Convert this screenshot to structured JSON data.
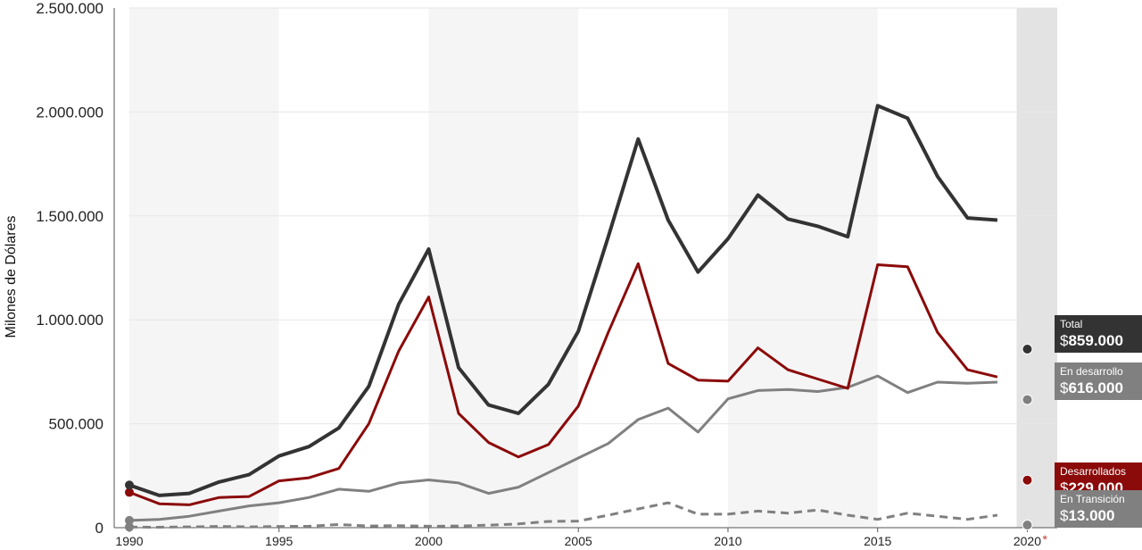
{
  "chart_data": {
    "type": "line",
    "ylabel": "Milones de Dólares",
    "ylim": [
      0,
      2500000
    ],
    "yticks": [
      0,
      500000,
      1000000,
      1500000,
      2000000,
      2500000
    ],
    "ytick_labels": [
      "0",
      "500.000",
      "1.000.000",
      "1.500.000",
      "2.000.000",
      "2.500.000"
    ],
    "xlim": [
      1990,
      2021
    ],
    "xticks": [
      1990,
      1995,
      2000,
      2005,
      2010,
      2015,
      2020
    ],
    "xtick_labels": [
      "1990",
      "1995",
      "2000",
      "2005",
      "2010",
      "2015",
      "2020"
    ],
    "x_note_marker": "*",
    "x": [
      1990,
      1991,
      1992,
      1993,
      1994,
      1995,
      1996,
      1997,
      1998,
      1999,
      2000,
      2001,
      2002,
      2003,
      2004,
      2005,
      2006,
      2007,
      2008,
      2009,
      2010,
      2011,
      2012,
      2013,
      2014,
      2015,
      2016,
      2017,
      2018,
      2019,
      2020
    ],
    "series": [
      {
        "name": "Total",
        "color": "#333333",
        "dashed": false,
        "values": [
          205000,
          155000,
          165000,
          220000,
          255000,
          345000,
          390000,
          480000,
          680000,
          1075000,
          1340000,
          770000,
          590000,
          550000,
          690000,
          945000,
          1400000,
          1870000,
          1480000,
          1230000,
          1390000,
          1600000,
          1485000,
          1450000,
          1400000,
          2030000,
          1970000,
          1690000,
          1490000,
          1480000,
          859000
        ]
      },
      {
        "name": "En desarrollo",
        "color": "#808080",
        "dashed": false,
        "values": [
          35000,
          40000,
          55000,
          80000,
          105000,
          120000,
          145000,
          185000,
          175000,
          215000,
          230000,
          215000,
          165000,
          195000,
          265000,
          335000,
          405000,
          520000,
          575000,
          460000,
          620000,
          660000,
          665000,
          655000,
          675000,
          730000,
          650000,
          700000,
          695000,
          700000,
          616000
        ]
      },
      {
        "name": "Desarrollados",
        "color": "#8b0a0a",
        "dashed": false,
        "values": [
          170000,
          115000,
          110000,
          145000,
          150000,
          225000,
          240000,
          285000,
          500000,
          850000,
          1110000,
          550000,
          410000,
          340000,
          400000,
          585000,
          940000,
          1270000,
          790000,
          710000,
          705000,
          865000,
          760000,
          715000,
          670000,
          1265000,
          1255000,
          940000,
          760000,
          725000,
          229000
        ]
      },
      {
        "name": "En Transición",
        "color": "#808080",
        "dashed": true,
        "values": [
          3000,
          2000,
          4000,
          6000,
          4000,
          6000,
          7000,
          15000,
          8000,
          10000,
          7000,
          8000,
          12000,
          18000,
          30000,
          32000,
          60000,
          90000,
          120000,
          65000,
          65000,
          80000,
          70000,
          85000,
          60000,
          40000,
          70000,
          55000,
          40000,
          60000,
          13000
        ]
      }
    ],
    "callouts": [
      {
        "label": "Total",
        "currency": "$",
        "value": "859.000",
        "bg": "#333333"
      },
      {
        "label": "En desarrollo",
        "currency": "$",
        "value": "616.000",
        "bg": "#808080"
      },
      {
        "label": "Desarrollados",
        "currency": "$",
        "value": "229.000",
        "bg": "#8b0a0a"
      },
      {
        "label": "En Transición",
        "currency": "$",
        "value": "13.000",
        "bg": "#808080"
      }
    ],
    "band_colors": {
      "shade": "#f5f5f5",
      "highlight": "#e3e3e3"
    }
  }
}
